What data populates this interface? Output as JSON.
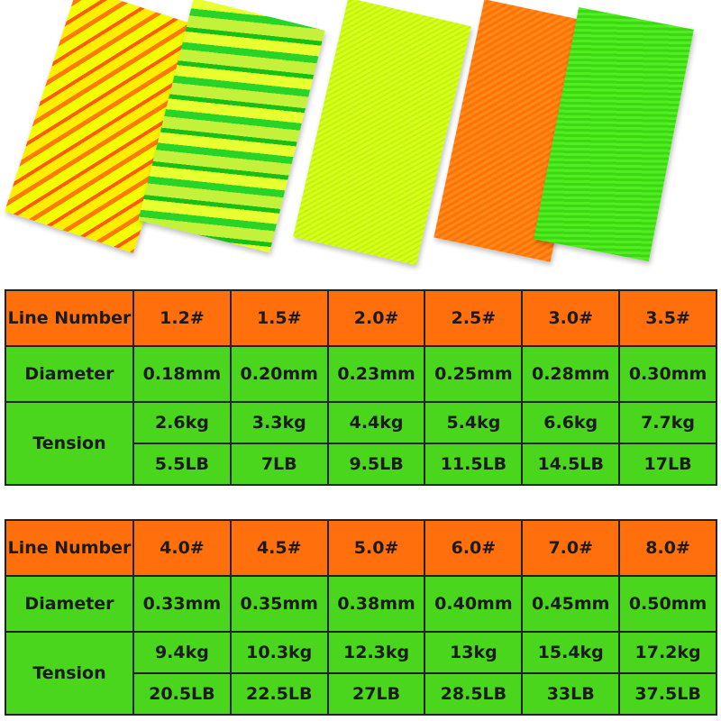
{
  "colors": {
    "header_orange": "#ff6f0b",
    "row_green": "#4ad61c",
    "border": "#222222"
  },
  "swatches": [
    {
      "name": "orange-yellow-stripe-swatch"
    },
    {
      "name": "green-yellow-stripe-swatch"
    },
    {
      "name": "fluorescent-yellow-swatch"
    },
    {
      "name": "orange-swatch"
    },
    {
      "name": "green-swatch"
    }
  ],
  "labels": {
    "line_number": "Line Number",
    "diameter": "Diameter",
    "tension": "Tension"
  },
  "tables": [
    {
      "line_numbers": [
        "1.2#",
        "1.5#",
        "2.0#",
        "2.5#",
        "3.0#",
        "3.5#"
      ],
      "diameters": [
        "0.18mm",
        "0.20mm",
        "0.23mm",
        "0.25mm",
        "0.28mm",
        "0.30mm"
      ],
      "tension_kg": [
        "2.6kg",
        "3.3kg",
        "4.4kg",
        "5.4kg",
        "6.6kg",
        "7.7kg"
      ],
      "tension_lb": [
        "5.5LB",
        "7LB",
        "9.5LB",
        "11.5LB",
        "14.5LB",
        "17LB"
      ]
    },
    {
      "line_numbers": [
        "4.0#",
        "4.5#",
        "5.0#",
        "6.0#",
        "7.0#",
        "8.0#"
      ],
      "diameters": [
        "0.33mm",
        "0.35mm",
        "0.38mm",
        "0.40mm",
        "0.45mm",
        "0.50mm"
      ],
      "tension_kg": [
        "9.4kg",
        "10.3kg",
        "12.3kg",
        "13kg",
        "15.4kg",
        "17.2kg"
      ],
      "tension_lb": [
        "20.5LB",
        "22.5LB",
        "27LB",
        "28.5LB",
        "33LB",
        "37.5LB"
      ]
    }
  ]
}
